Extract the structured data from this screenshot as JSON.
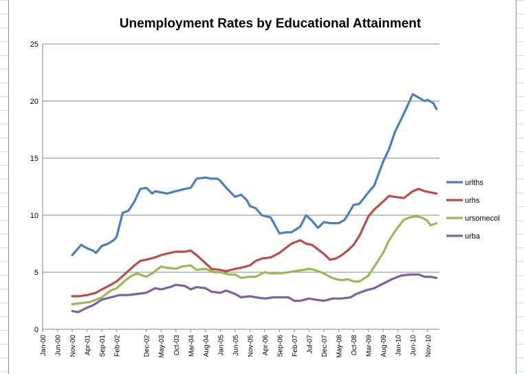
{
  "chart_data": {
    "type": "line",
    "title": "Unemployment Rates by Educational Attainment",
    "xlabel": "",
    "ylabel": "",
    "ylim": [
      0,
      25
    ],
    "yticks": [
      "0",
      "5",
      "10",
      "15",
      "20",
      "25"
    ],
    "grid": "horizontal major gridlines",
    "legend_position": "right",
    "x_tick_labels": [
      "Jan-00",
      "Jun-00",
      "Nov-00",
      "Apr-01",
      "Sep-01",
      "Feb-02",
      "Dec-02",
      "May-03",
      "Oct-03",
      "Mar-04",
      "Aug-04",
      "Jan-05",
      "Jun-05",
      "Nov-05",
      "Apr-06",
      "Sep-06",
      "Feb-07",
      "Jul-07",
      "Dec-07",
      "May-08",
      "Oct-08",
      "Mar-09",
      "Aug-09",
      "Jan-10",
      "Jun-10",
      "Nov-10"
    ],
    "series": [
      {
        "name": "urlths",
        "color": "#4a7ebb",
        "points": [
          [
            "Nov-00",
            6.5
          ],
          [
            "Feb-01",
            7.4
          ],
          [
            "Apr-01",
            7.1
          ],
          [
            "Jun-01",
            6.9
          ],
          [
            "Jul-01",
            6.7
          ],
          [
            "Sep-01",
            7.3
          ],
          [
            "Nov-01",
            7.5
          ],
          [
            "Jan-02",
            7.8
          ],
          [
            "Feb-02",
            8.1
          ],
          [
            "Apr-02",
            10.2
          ],
          [
            "Jun-02",
            10.4
          ],
          [
            "Aug-02",
            11.2
          ],
          [
            "Oct-02",
            12.3
          ],
          [
            "Dec-02",
            12.4
          ],
          [
            "Feb-03",
            11.9
          ],
          [
            "Mar-03",
            12.1
          ],
          [
            "May-03",
            12.0
          ],
          [
            "Jul-03",
            11.9
          ],
          [
            "Oct-03",
            12.1
          ],
          [
            "Jan-04",
            12.3
          ],
          [
            "Mar-04",
            12.4
          ],
          [
            "May-04",
            13.2
          ],
          [
            "Aug-04",
            13.3
          ],
          [
            "Oct-04",
            13.2
          ],
          [
            "Dec-04",
            13.2
          ],
          [
            "Jan-05",
            13.0
          ],
          [
            "Mar-05",
            12.4
          ],
          [
            "Jun-05",
            11.6
          ],
          [
            "Aug-05",
            11.8
          ],
          [
            "Oct-05",
            11.3
          ],
          [
            "Nov-05",
            10.8
          ],
          [
            "Jan-06",
            10.6
          ],
          [
            "Mar-06",
            10.0
          ],
          [
            "Jun-06",
            9.8
          ],
          [
            "Sep-06",
            8.4
          ],
          [
            "Nov-06",
            8.5
          ],
          [
            "Jan-07",
            8.5
          ],
          [
            "Apr-07",
            9.0
          ],
          [
            "Jun-07",
            10.0
          ],
          [
            "Aug-07",
            9.5
          ],
          [
            "Oct-07",
            8.9
          ],
          [
            "Dec-07",
            9.4
          ],
          [
            "Feb-08",
            9.3
          ],
          [
            "May-08",
            9.3
          ],
          [
            "Jul-08",
            9.6
          ],
          [
            "Aug-08",
            10.0
          ],
          [
            "Oct-08",
            10.9
          ],
          [
            "Dec-08",
            11.0
          ],
          [
            "Mar-09",
            12.0
          ],
          [
            "May-09",
            12.6
          ],
          [
            "Aug-09",
            14.7
          ],
          [
            "Oct-09",
            15.8
          ],
          [
            "Dec-09",
            17.3
          ],
          [
            "Mar-10",
            18.9
          ],
          [
            "Jun-10",
            20.6
          ],
          [
            "Aug-10",
            20.3
          ],
          [
            "Oct-10",
            20.0
          ],
          [
            "Nov-10",
            20.1
          ],
          [
            "Jan-11",
            19.8
          ],
          [
            "Feb-11",
            19.3
          ]
        ]
      },
      {
        "name": "urhs",
        "color": "#be4b48",
        "points": [
          [
            "Nov-00",
            2.9
          ],
          [
            "Jan-01",
            2.9
          ],
          [
            "Apr-01",
            3.0
          ],
          [
            "Jul-01",
            3.2
          ],
          [
            "Sep-01",
            3.5
          ],
          [
            "Dec-01",
            3.9
          ],
          [
            "Feb-02",
            4.2
          ],
          [
            "May-02",
            4.9
          ],
          [
            "Aug-02",
            5.6
          ],
          [
            "Oct-02",
            6.0
          ],
          [
            "Dec-02",
            6.1
          ],
          [
            "Mar-03",
            6.3
          ],
          [
            "May-03",
            6.5
          ],
          [
            "Aug-03",
            6.7
          ],
          [
            "Oct-03",
            6.8
          ],
          [
            "Jan-04",
            6.8
          ],
          [
            "Mar-04",
            6.9
          ],
          [
            "May-04",
            6.5
          ],
          [
            "Aug-04",
            5.8
          ],
          [
            "Oct-04",
            5.3
          ],
          [
            "Jan-05",
            5.2
          ],
          [
            "Mar-05",
            5.1
          ],
          [
            "Jun-05",
            5.3
          ],
          [
            "Aug-05",
            5.4
          ],
          [
            "Nov-05",
            5.6
          ],
          [
            "Jan-06",
            6.0
          ],
          [
            "Mar-06",
            6.2
          ],
          [
            "Jun-06",
            6.3
          ],
          [
            "Sep-06",
            6.7
          ],
          [
            "Nov-06",
            7.1
          ],
          [
            "Jan-07",
            7.5
          ],
          [
            "Apr-07",
            7.8
          ],
          [
            "Jun-07",
            7.5
          ],
          [
            "Aug-07",
            7.4
          ],
          [
            "Oct-07",
            7.0
          ],
          [
            "Dec-07",
            6.6
          ],
          [
            "Feb-08",
            6.1
          ],
          [
            "Apr-08",
            6.2
          ],
          [
            "Jun-08",
            6.5
          ],
          [
            "Aug-08",
            6.9
          ],
          [
            "Oct-08",
            7.4
          ],
          [
            "Dec-08",
            8.2
          ],
          [
            "Mar-09",
            9.9
          ],
          [
            "May-09",
            10.5
          ],
          [
            "Aug-09",
            11.2
          ],
          [
            "Oct-09",
            11.7
          ],
          [
            "Dec-09",
            11.6
          ],
          [
            "Mar-10",
            11.5
          ],
          [
            "Jun-10",
            12.1
          ],
          [
            "Aug-10",
            12.3
          ],
          [
            "Oct-10",
            12.1
          ],
          [
            "Dec-10",
            12.0
          ],
          [
            "Feb-11",
            11.9
          ]
        ]
      },
      {
        "name": "ursomecol",
        "color": "#98b954",
        "points": [
          [
            "Nov-00",
            2.2
          ],
          [
            "Feb-01",
            2.3
          ],
          [
            "May-01",
            2.4
          ],
          [
            "Sep-01",
            2.8
          ],
          [
            "Dec-01",
            3.4
          ],
          [
            "Feb-02",
            3.6
          ],
          [
            "May-02",
            4.3
          ],
          [
            "Jul-02",
            4.7
          ],
          [
            "Sep-02",
            4.9
          ],
          [
            "Dec-02",
            4.6
          ],
          [
            "Feb-03",
            4.9
          ],
          [
            "May-03",
            5.5
          ],
          [
            "Jul-03",
            5.4
          ],
          [
            "Oct-03",
            5.3
          ],
          [
            "Dec-03",
            5.5
          ],
          [
            "Mar-04",
            5.6
          ],
          [
            "May-04",
            5.2
          ],
          [
            "Aug-04",
            5.3
          ],
          [
            "Nov-04",
            5.0
          ],
          [
            "Jan-05",
            5.0
          ],
          [
            "Apr-05",
            4.8
          ],
          [
            "Jun-05",
            4.8
          ],
          [
            "Aug-05",
            4.5
          ],
          [
            "Nov-05",
            4.6
          ],
          [
            "Jan-06",
            4.6
          ],
          [
            "Apr-06",
            5.0
          ],
          [
            "Jun-06",
            4.9
          ],
          [
            "Sep-06",
            4.9
          ],
          [
            "Dec-06",
            5.0
          ],
          [
            "Feb-07",
            5.1
          ],
          [
            "May-07",
            5.2
          ],
          [
            "Jul-07",
            5.3
          ],
          [
            "Sep-07",
            5.2
          ],
          [
            "Dec-07",
            4.9
          ],
          [
            "Feb-08",
            4.6
          ],
          [
            "Apr-08",
            4.4
          ],
          [
            "Jun-08",
            4.3
          ],
          [
            "Aug-08",
            4.4
          ],
          [
            "Oct-08",
            4.2
          ],
          [
            "Dec-08",
            4.2
          ],
          [
            "Mar-09",
            4.7
          ],
          [
            "May-09",
            5.5
          ],
          [
            "Aug-09",
            6.7
          ],
          [
            "Oct-09",
            7.8
          ],
          [
            "Dec-09",
            8.6
          ],
          [
            "Mar-10",
            9.6
          ],
          [
            "May-10",
            9.8
          ],
          [
            "Jul-10",
            9.9
          ],
          [
            "Sep-10",
            9.8
          ],
          [
            "Nov-10",
            9.5
          ],
          [
            "Dec-10",
            9.1
          ],
          [
            "Feb-11",
            9.3
          ]
        ]
      },
      {
        "name": "urba",
        "color": "#7d60a0",
        "points": [
          [
            "Nov-00",
            1.6
          ],
          [
            "Jan-01",
            1.5
          ],
          [
            "Apr-01",
            1.9
          ],
          [
            "Jun-01",
            2.1
          ],
          [
            "Sep-01",
            2.6
          ],
          [
            "Dec-01",
            2.8
          ],
          [
            "Mar-02",
            3.0
          ],
          [
            "Jun-02",
            3.0
          ],
          [
            "Sep-02",
            3.1
          ],
          [
            "Dec-02",
            3.2
          ],
          [
            "Mar-03",
            3.6
          ],
          [
            "May-03",
            3.5
          ],
          [
            "Aug-03",
            3.7
          ],
          [
            "Oct-03",
            3.9
          ],
          [
            "Jan-04",
            3.8
          ],
          [
            "Mar-04",
            3.5
          ],
          [
            "May-04",
            3.7
          ],
          [
            "Aug-04",
            3.6
          ],
          [
            "Oct-04",
            3.3
          ],
          [
            "Jan-05",
            3.2
          ],
          [
            "Mar-05",
            3.4
          ],
          [
            "Jun-05",
            3.1
          ],
          [
            "Aug-05",
            2.8
          ],
          [
            "Nov-05",
            2.9
          ],
          [
            "Jan-06",
            2.8
          ],
          [
            "Apr-06",
            2.7
          ],
          [
            "Jul-06",
            2.8
          ],
          [
            "Oct-06",
            2.8
          ],
          [
            "Dec-06",
            2.8
          ],
          [
            "Feb-07",
            2.5
          ],
          [
            "Apr-07",
            2.5
          ],
          [
            "Jul-07",
            2.7
          ],
          [
            "Sep-07",
            2.6
          ],
          [
            "Dec-07",
            2.5
          ],
          [
            "Mar-08",
            2.7
          ],
          [
            "Jun-08",
            2.7
          ],
          [
            "Sep-08",
            2.8
          ],
          [
            "Nov-08",
            3.1
          ],
          [
            "Feb-09",
            3.4
          ],
          [
            "May-09",
            3.6
          ],
          [
            "Aug-09",
            4.0
          ],
          [
            "Nov-09",
            4.4
          ],
          [
            "Feb-10",
            4.7
          ],
          [
            "May-10",
            4.8
          ],
          [
            "Aug-10",
            4.8
          ],
          [
            "Oct-10",
            4.6
          ],
          [
            "Dec-10",
            4.6
          ],
          [
            "Feb-11",
            4.5
          ]
        ]
      }
    ]
  }
}
